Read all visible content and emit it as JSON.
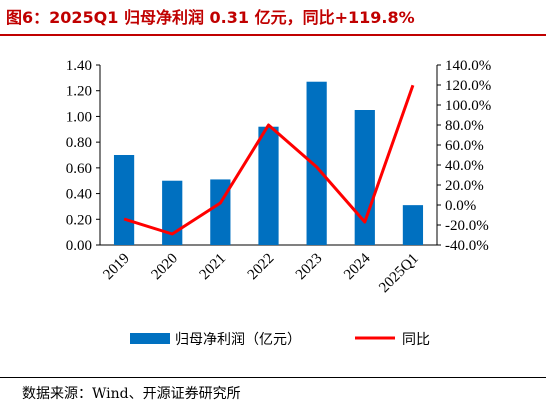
{
  "page": {
    "title": "图6：2025Q1 归母净利润 0.31 亿元，同比+119.8%",
    "source": "数据来源：Wind、开源证券研究所"
  },
  "colors": {
    "accent": "#c00000",
    "bar": "#0070c0",
    "line": "#ff0000"
  },
  "chart_data": {
    "type": "bar",
    "title": "图6：2025Q1 归母净利润 0.31 亿元，同比+119.8%",
    "xlabel": "",
    "ylabel": "",
    "categories": [
      "2019",
      "2020",
      "2021",
      "2022",
      "2023",
      "2024",
      "2025Q1"
    ],
    "series": [
      {
        "name": "归母净利润（亿元）",
        "type": "bar",
        "axis": "left",
        "values": [
          0.7,
          0.5,
          0.51,
          0.92,
          1.27,
          1.05,
          0.31
        ]
      },
      {
        "name": "同比",
        "type": "line",
        "axis": "right",
        "values": [
          -14.0,
          -29.0,
          2.0,
          80.0,
          38.0,
          -17.0,
          119.8
        ]
      }
    ],
    "ylim": [
      0,
      1.4
    ],
    "y2lim": [
      -40,
      140
    ],
    "yticks": [
      "0.00",
      "0.20",
      "0.40",
      "0.60",
      "0.80",
      "1.00",
      "1.20",
      "1.40"
    ],
    "y2ticks": [
      "-40.0%",
      "-20.0%",
      "0.0%",
      "20.0%",
      "40.0%",
      "60.0%",
      "80.0%",
      "100.0%",
      "120.0%",
      "140.0%"
    ],
    "grid": false,
    "legend": "bottom"
  }
}
